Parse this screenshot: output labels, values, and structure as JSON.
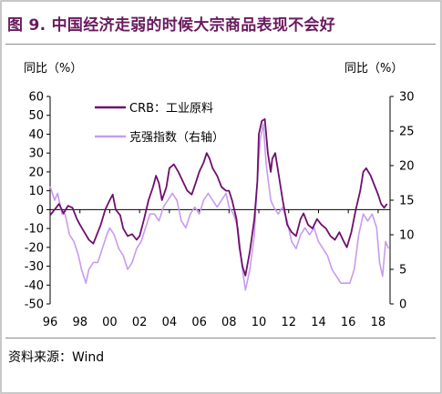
{
  "title": "图 9.  中国经济走弱的时候大宗商品表现不会好",
  "source": "资料来源：Wind",
  "chart_data": {
    "type": "line",
    "title": "图 9.  中国经济走弱的时候大宗商品表现不会好",
    "left_axis": {
      "label": "同比（%）",
      "range": [
        -50,
        60
      ],
      "ticks": [
        60,
        50,
        40,
        30,
        20,
        10,
        0,
        -10,
        -20,
        -30,
        -40,
        -50
      ]
    },
    "right_axis": {
      "label": "同比（%）",
      "range": [
        0,
        30
      ],
      "ticks": [
        30,
        25,
        20,
        15,
        10,
        5,
        0
      ]
    },
    "x_axis": {
      "range": [
        1996,
        2018.8
      ],
      "tick_labels": [
        "96",
        "98",
        "00",
        "02",
        "04",
        "06",
        "08",
        "10",
        "12",
        "14",
        "16",
        "18"
      ],
      "tick_years": [
        1996,
        1998,
        2000,
        2002,
        2004,
        2006,
        2008,
        2010,
        2012,
        2014,
        2016,
        2018
      ]
    },
    "grid": false,
    "legend": "top-left",
    "colors": {
      "crb": "#6e0f6e",
      "pmi": "#c79bf0",
      "title": "#6a1a5e"
    },
    "series": [
      {
        "name": "CRB：工业原料",
        "axis": "left",
        "color": "#6e0f6e",
        "points": [
          [
            1996.0,
            -3
          ],
          [
            1996.3,
            0
          ],
          [
            1996.6,
            3
          ],
          [
            1996.9,
            -2
          ],
          [
            1997.2,
            2
          ],
          [
            1997.5,
            1
          ],
          [
            1997.8,
            -5
          ],
          [
            1998.0,
            -8
          ],
          [
            1998.3,
            -12
          ],
          [
            1998.6,
            -16
          ],
          [
            1998.9,
            -18
          ],
          [
            1999.1,
            -14
          ],
          [
            1999.4,
            -8
          ],
          [
            1999.7,
            0
          ],
          [
            2000.0,
            5
          ],
          [
            2000.2,
            8
          ],
          [
            2000.4,
            0
          ],
          [
            2000.7,
            -3
          ],
          [
            2000.9,
            -10
          ],
          [
            2001.2,
            -14
          ],
          [
            2001.5,
            -13
          ],
          [
            2001.8,
            -16
          ],
          [
            2002.0,
            -14
          ],
          [
            2002.3,
            -5
          ],
          [
            2002.6,
            5
          ],
          [
            2002.9,
            12
          ],
          [
            2003.1,
            18
          ],
          [
            2003.3,
            14
          ],
          [
            2003.5,
            5
          ],
          [
            2003.8,
            12
          ],
          [
            2004.0,
            22
          ],
          [
            2004.3,
            24
          ],
          [
            2004.6,
            20
          ],
          [
            2004.9,
            15
          ],
          [
            2005.2,
            10
          ],
          [
            2005.5,
            8
          ],
          [
            2005.8,
            15
          ],
          [
            2006.0,
            20
          ],
          [
            2006.3,
            25
          ],
          [
            2006.5,
            30
          ],
          [
            2006.7,
            27
          ],
          [
            2006.9,
            22
          ],
          [
            2007.2,
            18
          ],
          [
            2007.5,
            12
          ],
          [
            2007.8,
            10
          ],
          [
            2008.0,
            10
          ],
          [
            2008.2,
            5
          ],
          [
            2008.5,
            -5
          ],
          [
            2008.7,
            -20
          ],
          [
            2008.9,
            -30
          ],
          [
            2009.1,
            -35
          ],
          [
            2009.4,
            -22
          ],
          [
            2009.7,
            -5
          ],
          [
            2009.9,
            15
          ],
          [
            2010.0,
            40
          ],
          [
            2010.2,
            47
          ],
          [
            2010.4,
            48
          ],
          [
            2010.6,
            30
          ],
          [
            2010.8,
            20
          ],
          [
            2010.9,
            27
          ],
          [
            2011.1,
            30
          ],
          [
            2011.3,
            20
          ],
          [
            2011.6,
            5
          ],
          [
            2011.9,
            -8
          ],
          [
            2012.2,
            -12
          ],
          [
            2012.5,
            -14
          ],
          [
            2012.8,
            -5
          ],
          [
            2013.0,
            -2
          ],
          [
            2013.3,
            -8
          ],
          [
            2013.6,
            -10
          ],
          [
            2013.9,
            -5
          ],
          [
            2014.2,
            -8
          ],
          [
            2014.5,
            -10
          ],
          [
            2014.8,
            -14
          ],
          [
            2015.1,
            -16
          ],
          [
            2015.4,
            -12
          ],
          [
            2015.7,
            -17
          ],
          [
            2015.9,
            -20
          ],
          [
            2016.2,
            -12
          ],
          [
            2016.5,
            0
          ],
          [
            2016.8,
            10
          ],
          [
            2017.0,
            20
          ],
          [
            2017.2,
            22
          ],
          [
            2017.5,
            18
          ],
          [
            2017.8,
            12
          ],
          [
            2018.0,
            8
          ],
          [
            2018.2,
            3
          ],
          [
            2018.4,
            1
          ],
          [
            2018.6,
            3
          ]
        ]
      },
      {
        "name": "克强指数（右轴）",
        "axis": "right",
        "color": "#c79bf0",
        "points": [
          [
            1996.0,
            17
          ],
          [
            1996.3,
            15
          ],
          [
            1996.5,
            16
          ],
          [
            1996.8,
            13
          ],
          [
            1997.0,
            13
          ],
          [
            1997.3,
            10
          ],
          [
            1997.6,
            9
          ],
          [
            1997.9,
            7
          ],
          [
            1998.1,
            5
          ],
          [
            1998.4,
            3
          ],
          [
            1998.6,
            5
          ],
          [
            1998.9,
            6
          ],
          [
            1999.2,
            6
          ],
          [
            1999.5,
            8
          ],
          [
            1999.8,
            10
          ],
          [
            2000.0,
            11
          ],
          [
            2000.3,
            10
          ],
          [
            2000.6,
            8
          ],
          [
            2000.9,
            7
          ],
          [
            2001.2,
            5
          ],
          [
            2001.5,
            6
          ],
          [
            2001.8,
            8
          ],
          [
            2002.1,
            9
          ],
          [
            2002.4,
            11
          ],
          [
            2002.7,
            13
          ],
          [
            2003.0,
            13
          ],
          [
            2003.3,
            12
          ],
          [
            2003.6,
            14
          ],
          [
            2003.9,
            15
          ],
          [
            2004.2,
            16
          ],
          [
            2004.5,
            15
          ],
          [
            2004.8,
            12
          ],
          [
            2005.1,
            11
          ],
          [
            2005.4,
            13
          ],
          [
            2005.7,
            14
          ],
          [
            2006.0,
            13
          ],
          [
            2006.3,
            15
          ],
          [
            2006.6,
            16
          ],
          [
            2006.9,
            15
          ],
          [
            2007.2,
            14
          ],
          [
            2007.5,
            15
          ],
          [
            2007.8,
            16
          ],
          [
            2008.0,
            14
          ],
          [
            2008.3,
            13
          ],
          [
            2008.6,
            11
          ],
          [
            2008.9,
            5
          ],
          [
            2009.1,
            2
          ],
          [
            2009.4,
            5
          ],
          [
            2009.7,
            10
          ],
          [
            2009.9,
            18
          ],
          [
            2010.1,
            24
          ],
          [
            2010.3,
            26
          ],
          [
            2010.5,
            20
          ],
          [
            2010.8,
            15
          ],
          [
            2011.0,
            14
          ],
          [
            2011.3,
            13
          ],
          [
            2011.6,
            14
          ],
          [
            2011.9,
            12
          ],
          [
            2012.2,
            9
          ],
          [
            2012.5,
            8
          ],
          [
            2012.8,
            10
          ],
          [
            2013.1,
            11
          ],
          [
            2013.4,
            10
          ],
          [
            2013.7,
            11
          ],
          [
            2014.0,
            9
          ],
          [
            2014.3,
            8
          ],
          [
            2014.6,
            7
          ],
          [
            2014.9,
            5
          ],
          [
            2015.2,
            4
          ],
          [
            2015.5,
            3
          ],
          [
            2015.8,
            3
          ],
          [
            2016.1,
            3
          ],
          [
            2016.4,
            5
          ],
          [
            2016.7,
            10
          ],
          [
            2017.0,
            13
          ],
          [
            2017.3,
            12
          ],
          [
            2017.6,
            13
          ],
          [
            2017.9,
            11
          ],
          [
            2018.1,
            6
          ],
          [
            2018.3,
            4
          ],
          [
            2018.5,
            9
          ],
          [
            2018.7,
            8
          ]
        ]
      }
    ]
  }
}
